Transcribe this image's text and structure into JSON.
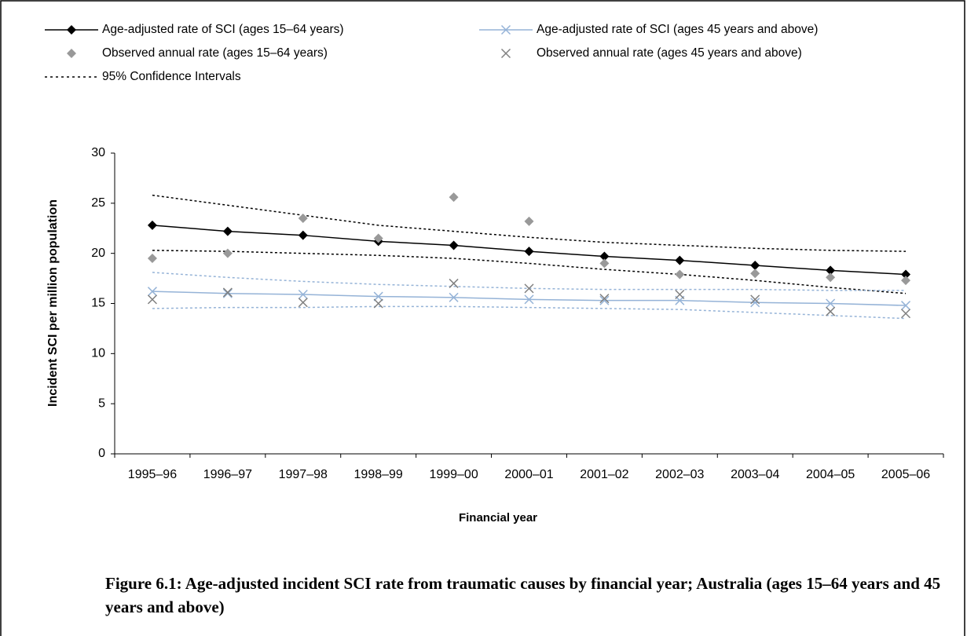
{
  "chart_data": {
    "type": "line",
    "title": "Figure 6.1: Age-adjusted incident SCI rate from traumatic causes by financial year; Australia (ages 15–64 years and 45 years and above)",
    "x_label": "Financial year",
    "y_label": "Incident SCI per million population",
    "categories": [
      "1995–96",
      "1996–97",
      "1997–98",
      "1998–99",
      "1999–00",
      "2000–01",
      "2001–02",
      "2002–03",
      "2003–04",
      "2004–05",
      "2005–06"
    ],
    "ylim": [
      0,
      30
    ],
    "yticks": [
      0,
      5,
      10,
      15,
      20,
      25,
      30
    ],
    "grid": false,
    "series": [
      {
        "name": "Age-adjusted rate of SCI (ages 15–64 years)",
        "color": "#000000",
        "mode": "line",
        "marker": "diamond",
        "values": [
          22.8,
          22.2,
          21.8,
          21.2,
          20.8,
          20.2,
          19.7,
          19.3,
          18.8,
          18.3,
          17.9
        ]
      },
      {
        "name": "Age-adjusted rate of SCI (ages 45 years and above)",
        "color": "#95b3d7",
        "mode": "line",
        "marker": "x",
        "values": [
          16.2,
          16.0,
          15.9,
          15.7,
          15.6,
          15.4,
          15.3,
          15.3,
          15.1,
          15.0,
          14.8
        ]
      },
      {
        "name": "Observed annual rate (ages 15–64 years)",
        "color": "#999999",
        "mode": "markers",
        "marker": "diamond",
        "values": [
          19.5,
          20.0,
          23.5,
          21.5,
          25.6,
          23.2,
          19.0,
          17.9,
          18.0,
          17.6,
          17.3
        ]
      },
      {
        "name": "Observed annual rate (ages 45 years and above)",
        "color": "#808080",
        "mode": "markers",
        "marker": "x",
        "values": [
          15.4,
          16.1,
          15.1,
          15.0,
          17.0,
          16.5,
          15.5,
          15.9,
          15.4,
          14.2,
          14.0
        ]
      }
    ],
    "confidence_intervals": {
      "name": "95% Confidence Intervals",
      "legend_color": "#000000",
      "bands": [
        {
          "color": "#000000",
          "lower": [
            20.3,
            20.2,
            20.0,
            19.8,
            19.5,
            19.0,
            18.4,
            17.9,
            17.3,
            16.6,
            16.0
          ],
          "upper": [
            25.8,
            24.8,
            23.8,
            22.8,
            22.2,
            21.6,
            21.1,
            20.8,
            20.5,
            20.3,
            20.2
          ]
        },
        {
          "color": "#95b3d7",
          "lower": [
            14.5,
            14.6,
            14.6,
            14.7,
            14.7,
            14.6,
            14.5,
            14.4,
            14.1,
            13.8,
            13.5
          ],
          "upper": [
            18.1,
            17.6,
            17.2,
            16.9,
            16.7,
            16.5,
            16.4,
            16.4,
            16.4,
            16.3,
            16.3
          ]
        }
      ]
    }
  }
}
